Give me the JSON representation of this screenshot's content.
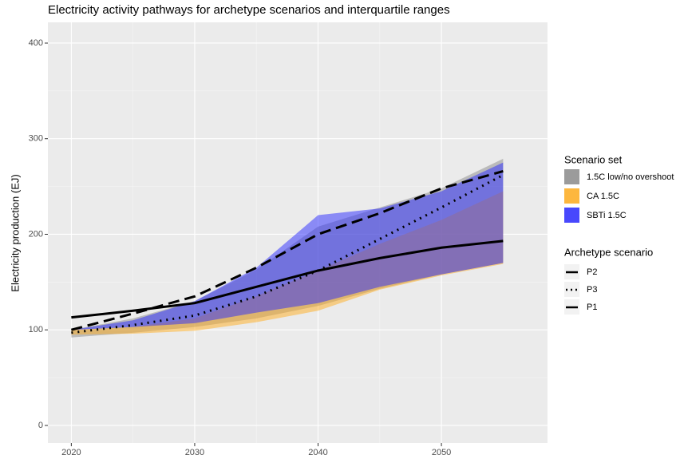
{
  "chart_data": {
    "type": "ribbon",
    "title": "Electricity activity pathways for archetype scenarios and interquartile ranges",
    "y_label": "Electricity production (EJ)",
    "x": [
      2020,
      2025,
      2030,
      2035,
      2040,
      2045,
      2050,
      2055
    ],
    "xlim": [
      2018.1,
      2058.6
    ],
    "ylim": [
      -18.4,
      421.7
    ],
    "xticks": [
      2020,
      2030,
      2040,
      2050
    ],
    "yticks": [
      0,
      100,
      200,
      300,
      400
    ],
    "grid": true,
    "legend_position": "right",
    "fill_legend_title": "Scenario set",
    "line_legend_title": "Archetype scenario",
    "ribbons": [
      {
        "name": "1.5C low/no overshoot",
        "color": "#8c8c8c",
        "lower": [
          92,
          97,
          103,
          112,
          125,
          143,
          158,
          170
        ],
        "upper": [
          100,
          112,
          130,
          163,
          208,
          228,
          248,
          279
        ]
      },
      {
        "name": "CA 1.5C",
        "color": "#ffad1f",
        "lower": [
          95,
          96,
          99,
          108,
          120,
          142,
          157,
          169
        ],
        "upper": [
          100,
          103,
          112,
          135,
          162,
          190,
          215,
          245
        ]
      },
      {
        "name": "SBTi 1.5C",
        "color": "#2a2aff",
        "lower": [
          100,
          103,
          107,
          118,
          128,
          145,
          158,
          170
        ],
        "upper": [
          100,
          110,
          130,
          165,
          220,
          227,
          245,
          275
        ]
      }
    ],
    "lines": [
      {
        "name": "P2",
        "color": "#000000",
        "dash": "dashed",
        "values": [
          100,
          117,
          135,
          165,
          200,
          222,
          248,
          266
        ]
      },
      {
        "name": "P3",
        "color": "#000000",
        "dash": "dotted",
        "values": [
          97,
          105,
          115,
          135,
          162,
          195,
          228,
          262
        ]
      },
      {
        "name": "P1",
        "color": "#000000",
        "dash": "solid",
        "values": [
          113,
          120,
          128,
          145,
          162,
          175,
          186,
          193
        ]
      }
    ]
  }
}
